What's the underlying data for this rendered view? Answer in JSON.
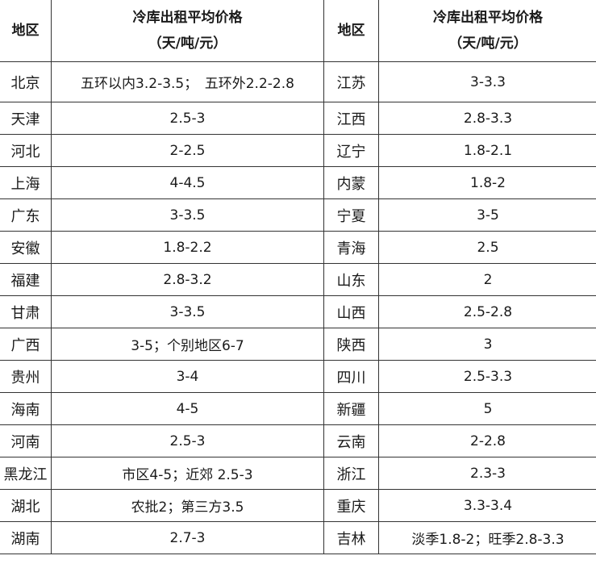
{
  "header": {
    "region": "地区",
    "price_line1": "冷库出租平均价格",
    "price_line2": "（天/吨/元）"
  },
  "rows": [
    {
      "left_region": "北京",
      "left_price": "五环以内3.2-3.5；　五环外2.2-2.8",
      "right_region": "江苏",
      "right_price": "3-3.3"
    },
    {
      "left_region": "天津",
      "left_price": "2.5-3",
      "right_region": "江西",
      "right_price": "2.8-3.3"
    },
    {
      "left_region": "河北",
      "left_price": "2-2.5",
      "right_region": "辽宁",
      "right_price": "1.8-2.1"
    },
    {
      "left_region": "上海",
      "left_price": "4-4.5",
      "right_region": "内蒙",
      "right_price": "1.8-2"
    },
    {
      "left_region": "广东",
      "left_price": "3-3.5",
      "right_region": "宁夏",
      "right_price": "3-5"
    },
    {
      "left_region": "安徽",
      "left_price": "1.8-2.2",
      "right_region": "青海",
      "right_price": "2.5"
    },
    {
      "left_region": "福建",
      "left_price": "2.8-3.2",
      "right_region": "山东",
      "right_price": "2"
    },
    {
      "left_region": "甘肃",
      "left_price": "3-3.5",
      "right_region": "山西",
      "right_price": "2.5-2.8"
    },
    {
      "left_region": "广西",
      "left_price": "3-5；个别地区6-7",
      "right_region": "陕西",
      "right_price": "3"
    },
    {
      "left_region": "贵州",
      "left_price": "3-4",
      "right_region": "四川",
      "right_price": "2.5-3.3"
    },
    {
      "left_region": "海南",
      "left_price": "4-5",
      "right_region": "新疆",
      "right_price": "5"
    },
    {
      "left_region": "河南",
      "left_price": "2.5-3",
      "right_region": "云南",
      "right_price": "2-2.8"
    },
    {
      "left_region": "黑龙江",
      "left_price": "市区4-5；近郊 2.5-3",
      "right_region": "浙江",
      "right_price": "2.3-3"
    },
    {
      "left_region": "湖北",
      "left_price": "农批2；第三方3.5",
      "right_region": "重庆",
      "right_price": "3.3-3.4"
    },
    {
      "left_region": "湖南",
      "left_price": "2.7-3",
      "right_region": "吉林",
      "right_price": "淡季1.8-2；旺季2.8-3.3"
    }
  ]
}
